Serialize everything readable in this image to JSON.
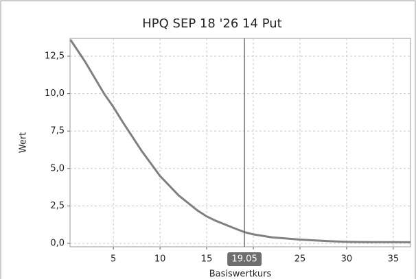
{
  "chart_data": {
    "type": "line",
    "title": "HPQ SEP 18 '26 14 Put",
    "y_label": "Wert",
    "x_label": "Basiswertkurs",
    "x": [
      0.4,
      2,
      4,
      5,
      6,
      8,
      10,
      12,
      14,
      15,
      16,
      18,
      19.05,
      20,
      22,
      25,
      28,
      30,
      33,
      36.85
    ],
    "values": [
      13.6,
      12.1,
      10.0,
      9.1,
      8.1,
      6.2,
      4.5,
      3.2,
      2.2,
      1.8,
      1.5,
      1.0,
      0.75,
      0.6,
      0.4,
      0.25,
      0.15,
      0.1,
      0.08,
      0.07
    ],
    "color": "#808080",
    "marker_x": 19.05,
    "xlim": [
      0.35,
      36.85
    ],
    "ylim": [
      -0.23,
      13.69
    ],
    "xticks": [
      5,
      10,
      15,
      20,
      25,
      30,
      35
    ],
    "yticks": [
      {
        "value": 0,
        "label": "0,0"
      },
      {
        "value": 2.5,
        "label": "2,5"
      },
      {
        "value": 5,
        "label": "5,0"
      },
      {
        "value": 7.5,
        "label": "7,5"
      },
      {
        "value": 10,
        "label": "10,0"
      },
      {
        "value": 12.5,
        "label": "12,5"
      }
    ],
    "grid": true
  }
}
